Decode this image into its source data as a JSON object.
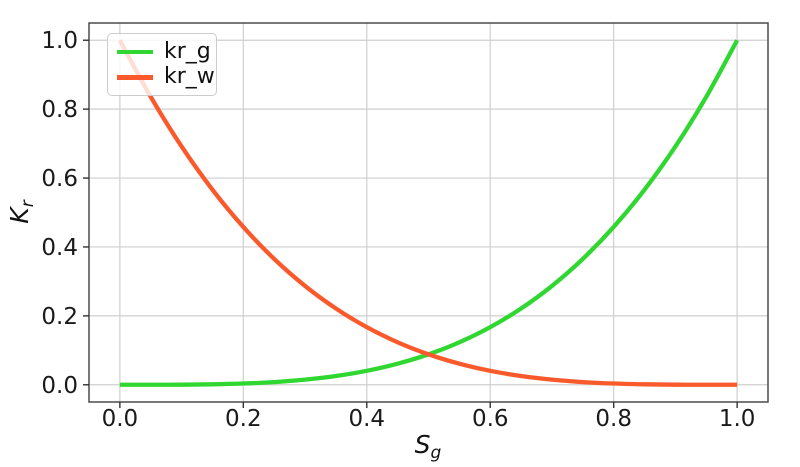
{
  "chart_data": {
    "type": "line",
    "title": "",
    "xlabel": {
      "base": "S",
      "sub": "g"
    },
    "ylabel": {
      "base": "K",
      "sub": "r"
    },
    "xlim": [
      -0.05,
      1.05
    ],
    "ylim": [
      -0.05,
      1.05
    ],
    "grid": true,
    "grid_color": "#cfcfcf",
    "spine_color": "#4b4b4b",
    "tick_color": "#333333",
    "tick_label_color": "#1a1a1a",
    "legend_position": "upper-left",
    "xticks": [
      0.0,
      0.2,
      0.4,
      0.6,
      0.8,
      1.0
    ],
    "xtick_labels": [
      "0.0",
      "0.2",
      "0.4",
      "0.6",
      "0.8",
      "1.0"
    ],
    "yticks": [
      0.0,
      0.2,
      0.4,
      0.6,
      0.8,
      1.0
    ],
    "ytick_labels": [
      "0.0",
      "0.2",
      "0.4",
      "0.6",
      "0.8",
      "1.0"
    ],
    "x": [
      0,
      0.05,
      0.1,
      0.15,
      0.2,
      0.25,
      0.3,
      0.35,
      0.4,
      0.45,
      0.5,
      0.55,
      0.6,
      0.65,
      0.7,
      0.75,
      0.8,
      0.85,
      0.9,
      0.95,
      1
    ],
    "series": [
      {
        "name": "kr_g",
        "color": "#31d731",
        "values": [
          0,
          3e-05,
          0.0003,
          0.0013,
          0.0036,
          0.0078,
          0.0148,
          0.0254,
          0.0405,
          0.0612,
          0.0884,
          0.1233,
          0.1673,
          0.2214,
          0.287,
          0.3653,
          0.458,
          0.5662,
          0.6916,
          0.8357,
          1
        ]
      },
      {
        "name": "kr_w",
        "color": "#fa5a2b",
        "values": [
          1,
          0.8357,
          0.6916,
          0.5662,
          0.458,
          0.3653,
          0.287,
          0.2214,
          0.1673,
          0.1233,
          0.0884,
          0.0612,
          0.0405,
          0.0254,
          0.0148,
          0.0078,
          0.0036,
          0.0013,
          0.0003,
          3e-05,
          0
        ]
      }
    ]
  }
}
